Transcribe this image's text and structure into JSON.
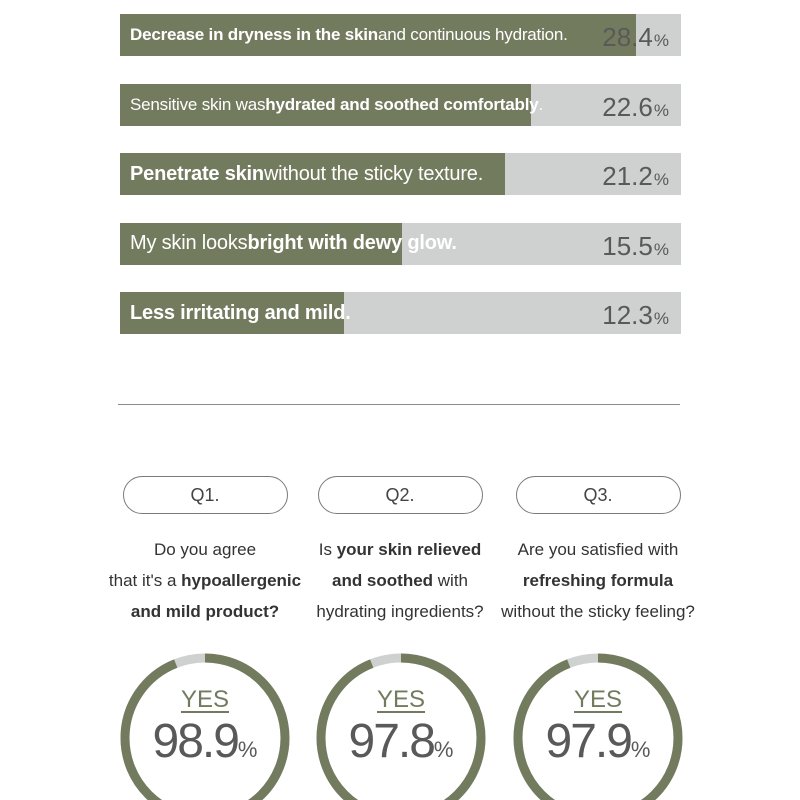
{
  "chart_data": [
    {
      "type": "bar",
      "orientation": "horizontal",
      "unit": "%",
      "xlim": [
        0,
        30
      ],
      "categories": [
        "Decrease in dryness in the skin and continuous hydration.",
        "Sensitive skin was hydrated and soothed comfortably.",
        "Penetrate skin without the sticky texture.",
        "My skin looks bright with dewy glow.",
        "Less irritating and mild."
      ],
      "bars": [
        {
          "bold": "Decrease in dryness in the skin",
          "rest": " and continuous hydration.",
          "value": 28.4,
          "value_text": "28.4",
          "pct": "%"
        },
        {
          "pre": "Sensitive skin was ",
          "bold": "hydrated and soothed comfortably",
          "rest": ".",
          "value": 22.6,
          "value_text": "22.6",
          "pct": "%"
        },
        {
          "bold": "Penetrate skin",
          "rest": " without the sticky texture.",
          "value": 21.2,
          "value_text": "21.2",
          "pct": "%"
        },
        {
          "pre": "My skin looks ",
          "bold": "bright with dewy glow.",
          "value": 15.5,
          "value_text": "15.5",
          "pct": "%"
        },
        {
          "bold": "Less irritating and mild.",
          "value": 12.3,
          "value_text": "12.3",
          "pct": "%"
        }
      ]
    },
    {
      "type": "pie",
      "variant": "donut",
      "series": [
        {
          "question": "Q1.",
          "lines": [
            {
              "text": "Do you agree"
            },
            {
              "pre": "that it's a ",
              "bold": "hypoallergenic"
            },
            {
              "bold": "and mild product?"
            }
          ],
          "answer": "YES",
          "value": 98.9,
          "value_text": "98.9",
          "pct": "%"
        },
        {
          "question": "Q2.",
          "lines": [
            {
              "pre": "Is ",
              "bold": "your skin relieved"
            },
            {
              "bold": "and soothed",
              "rest": " with"
            },
            {
              "text": "hydrating ingredients?"
            }
          ],
          "answer": "YES",
          "value": 97.8,
          "value_text": "97.8",
          "pct": "%"
        },
        {
          "question": "Q3.",
          "lines": [
            {
              "text": "Are you satisfied with"
            },
            {
              "bold": "refreshing formula"
            },
            {
              "text": "without the sticky feeling?"
            }
          ],
          "answer": "YES",
          "value": 97.9,
          "value_text": "97.9",
          "pct": "%"
        }
      ]
    }
  ],
  "colors": {
    "bar_fill": "#737b5e",
    "bar_track": "#cfd0d0",
    "donut_fill": "#737b5e",
    "donut_track": "#cfd0d0"
  }
}
